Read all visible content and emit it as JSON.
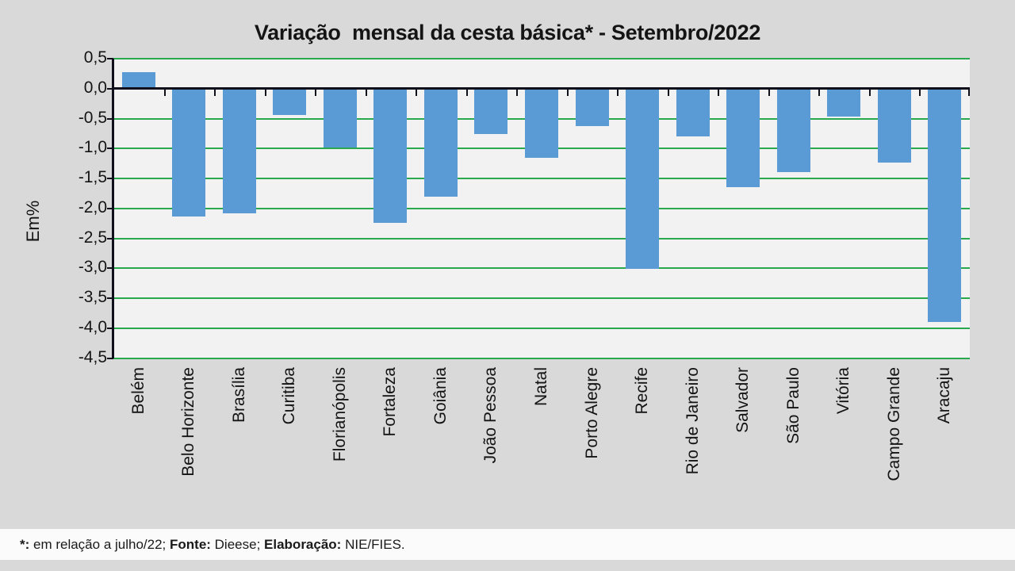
{
  "page": {
    "background": "#d9d9d9",
    "footnote_bg": "#fbfbfb"
  },
  "chart_data": {
    "type": "bar",
    "title": "Variação  mensal da cesta básica* - Setembro/2022",
    "ylabel": "Em%",
    "xlabel": "",
    "categories": [
      "Belém",
      "Belo Horizonte",
      "Brasília",
      "Curitiba",
      "Florianópolis",
      "Fortaleza",
      "Goiânia",
      "João Pessoa",
      "Natal",
      "Porto Alegre",
      "Recife",
      "Rio de Janeiro",
      "Salvador",
      "São Paulo",
      "Vitória",
      "Campo Grande",
      "Aracaju"
    ],
    "values": [
      0.27,
      -2.13,
      -2.08,
      -0.44,
      -0.98,
      -2.24,
      -1.8,
      -0.76,
      -1.16,
      -0.62,
      -3.01,
      -0.8,
      -1.64,
      -1.4,
      -0.47,
      -1.23,
      -3.9
    ],
    "ylim": [
      -4.5,
      0.5
    ],
    "ytick_step": 0.5,
    "ytick_labels": [
      "0,5",
      "0,0",
      "-0,5",
      "-1,0",
      "-1,5",
      "-2,0",
      "-2,5",
      "-3,0",
      "-3,5",
      "-4,0",
      "-4,5"
    ],
    "grid": true,
    "legend": "none",
    "bar_color": "#5b9bd5",
    "gridline_color": "#2aa84e",
    "axis_color": "#10101c",
    "plot_bg": "#f2f2f2"
  },
  "footnote": {
    "parts": [
      {
        "text": "*: ",
        "bold": true
      },
      {
        "text": "em relação a julho/22; ",
        "bold": false
      },
      {
        "text": "Fonte: ",
        "bold": true
      },
      {
        "text": "Dieese; ",
        "bold": false
      },
      {
        "text": "Elaboração: ",
        "bold": true
      },
      {
        "text": "NIE/FIES.",
        "bold": false
      }
    ]
  }
}
